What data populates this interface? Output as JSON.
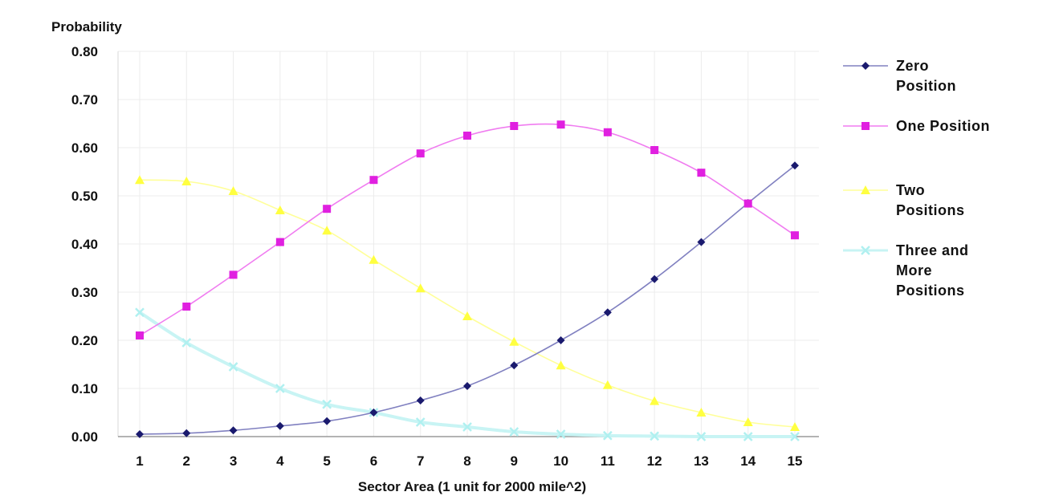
{
  "chart_data": {
    "type": "line",
    "title": "",
    "ylabel": "Probability",
    "xlabel": "Sector Area (1 unit for 2000 mile^2)",
    "categories": [
      1,
      2,
      3,
      4,
      5,
      6,
      7,
      8,
      9,
      10,
      11,
      12,
      13,
      14,
      15
    ],
    "category_labels": [
      "1",
      "2",
      "3",
      "4",
      "5",
      "6",
      "7",
      "8",
      "9",
      "10",
      "11",
      "12",
      "13",
      "14",
      "15"
    ],
    "ylim": [
      0,
      0.8
    ],
    "yticks": [
      0.0,
      0.1,
      0.2,
      0.3,
      0.4,
      0.5,
      0.6,
      0.7,
      0.8
    ],
    "ytick_labels": [
      "0.00",
      "0.10",
      "0.20",
      "0.30",
      "0.40",
      "0.50",
      "0.60",
      "0.70",
      "0.80"
    ],
    "grid": true,
    "legend_position": "right",
    "series": [
      {
        "name": "Zero Position",
        "legend_lines": [
          "Zero",
          "Position"
        ],
        "color": "#1a1a6e",
        "line_color": "#8080c0",
        "marker": "diamond",
        "values": [
          0.005,
          0.007,
          0.013,
          0.022,
          0.032,
          0.05,
          0.075,
          0.105,
          0.148,
          0.2,
          0.258,
          0.327,
          0.404,
          0.485,
          0.563
        ]
      },
      {
        "name": "One Position",
        "legend_lines": [
          "One Position"
        ],
        "color": "#e020e0",
        "line_color": "#f07cf0",
        "marker": "square",
        "values": [
          0.21,
          0.27,
          0.336,
          0.404,
          0.473,
          0.533,
          0.588,
          0.625,
          0.645,
          0.648,
          0.632,
          0.595,
          0.548,
          0.484,
          0.418
        ]
      },
      {
        "name": "Two Positions",
        "legend_lines": [
          "Two",
          "Positions"
        ],
        "color": "#ffff40",
        "line_color": "#ffff99",
        "marker": "triangle",
        "values": [
          0.533,
          0.53,
          0.51,
          0.47,
          0.428,
          0.367,
          0.308,
          0.25,
          0.197,
          0.148,
          0.107,
          0.074,
          0.05,
          0.03,
          0.02
        ]
      },
      {
        "name": "Three and More Positions",
        "legend_lines": [
          "Three and",
          "More",
          "Positions"
        ],
        "color": "#b0f0f0",
        "line_color": "#c8f4f4",
        "marker": "x",
        "values": [
          0.258,
          0.195,
          0.145,
          0.1,
          0.067,
          0.05,
          0.03,
          0.02,
          0.01,
          0.005,
          0.002,
          0.001,
          0.0,
          0.0,
          0.0
        ]
      }
    ]
  }
}
